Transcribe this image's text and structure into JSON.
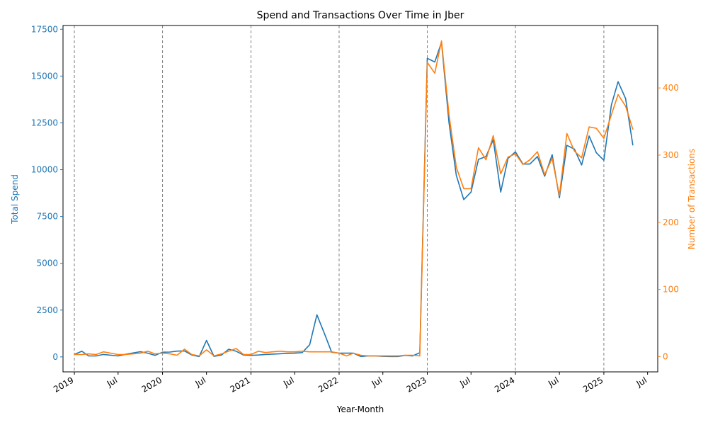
{
  "chart_data": {
    "type": "line",
    "title": "Spend and Transactions Over Time in Jber",
    "xlabel": "Year-Month",
    "ylabel_left": "Total Spend",
    "ylabel_right": "Number of Transactions",
    "x_tick_labels": [
      "2019",
      "Jul",
      "2020",
      "Jul",
      "2021",
      "Jul",
      "2022",
      "Jul",
      "2023",
      "Jul",
      "2024",
      "Jul",
      "2025",
      "Jul"
    ],
    "y_left_ticks": [
      "0",
      "2500",
      "5000",
      "7500",
      "10000",
      "12500",
      "15000",
      "17500"
    ],
    "y_right_ticks": [
      "0",
      "100",
      "200",
      "300",
      "400"
    ],
    "ylim_left": [
      -800,
      17700
    ],
    "ylim_right": [
      -22.8,
      493
    ],
    "xlim": [
      "2018-11-15",
      "2025-08-12"
    ],
    "year_gridlines": [
      "2019-01",
      "2020-01",
      "2021-01",
      "2022-01",
      "2023-01",
      "2024-01",
      "2025-01"
    ],
    "colors": {
      "spend": "#1f77b4",
      "transactions": "#ff7f0e",
      "gridline": "#808080"
    },
    "series": [
      {
        "axis": "left",
        "x": [
          "2019-01",
          "2019-02",
          "2019-03",
          "2019-04",
          "2019-05",
          "2019-07",
          "2019-08",
          "2019-09",
          "2019-10",
          "2019-11",
          "2019-12",
          "2020-01",
          "2020-02",
          "2020-03",
          "2020-04",
          "2020-05",
          "2020-06",
          "2020-07",
          "2020-08",
          "2020-09",
          "2020-10",
          "2020-11",
          "2020-12",
          "2021-01",
          "2021-02",
          "2021-03",
          "2021-04",
          "2021-05",
          "2021-06",
          "2021-07",
          "2021-08",
          "2021-09",
          "2021-10",
          "2021-11",
          "2021-12",
          "2022-01",
          "2022-02",
          "2022-03",
          "2022-04",
          "2022-05",
          "2022-06",
          "2022-07",
          "2022-08",
          "2022-09",
          "2022-10",
          "2022-11",
          "2022-12",
          "2023-01",
          "2023-02",
          "2023-03",
          "2023-04",
          "2023-05",
          "2023-06",
          "2023-07",
          "2023-08",
          "2023-09",
          "2023-10",
          "2023-11",
          "2023-12",
          "2024-01",
          "2024-02",
          "2024-03",
          "2024-04",
          "2024-05",
          "2024-06",
          "2024-07",
          "2024-08",
          "2024-09",
          "2024-10",
          "2024-11",
          "2024-12",
          "2025-01",
          "2025-02",
          "2025-03",
          "2025-04",
          "2025-05"
        ],
        "values": [
          130,
          300,
          50,
          50,
          130,
          50,
          140,
          210,
          280,
          200,
          80,
          250,
          260,
          310,
          320,
          100,
          20,
          880,
          30,
          100,
          410,
          300,
          100,
          80,
          100,
          130,
          150,
          170,
          190,
          200,
          230,
          650,
          2250,
          1250,
          250,
          200,
          200,
          200,
          20,
          50,
          50,
          30,
          20,
          20,
          80,
          50,
          220,
          15950,
          15750,
          16800,
          12500,
          9700,
          8400,
          8800,
          10550,
          10700,
          11600,
          8800,
          10600,
          10950,
          10300,
          10300,
          10700,
          9650,
          10800,
          8500,
          11300,
          11100,
          10250,
          11800,
          10900,
          10500,
          13450,
          14700,
          13800,
          11300
        ]
      },
      {
        "axis": "right",
        "x": [
          "2019-01",
          "2019-02",
          "2019-03",
          "2019-04",
          "2019-05",
          "2019-07",
          "2019-08",
          "2019-09",
          "2019-10",
          "2019-11",
          "2019-12",
          "2020-01",
          "2020-02",
          "2020-03",
          "2020-04",
          "2020-05",
          "2020-06",
          "2020-07",
          "2020-08",
          "2020-09",
          "2020-10",
          "2020-11",
          "2020-12",
          "2021-01",
          "2021-02",
          "2021-03",
          "2021-04",
          "2021-05",
          "2021-06",
          "2021-07",
          "2021-08",
          "2021-09",
          "2021-10",
          "2021-11",
          "2021-12",
          "2022-01",
          "2022-02",
          "2022-03",
          "2022-04",
          "2022-05",
          "2022-06",
          "2022-07",
          "2022-08",
          "2022-09",
          "2022-10",
          "2022-11",
          "2022-12",
          "2023-01",
          "2023-02",
          "2023-03",
          "2023-04",
          "2023-05",
          "2023-06",
          "2023-07",
          "2023-08",
          "2023-09",
          "2023-10",
          "2023-11",
          "2023-12",
          "2024-01",
          "2024-02",
          "2024-03",
          "2024-04",
          "2024-05",
          "2024-06",
          "2024-07",
          "2024-08",
          "2024-09",
          "2024-10",
          "2024-11",
          "2024-12",
          "2025-01",
          "2025-02",
          "2025-03",
          "2025-04",
          "2025-05"
        ],
        "values": [
          3,
          3,
          4,
          3,
          7,
          3,
          3,
          4,
          5,
          8,
          4,
          5,
          4,
          2,
          11,
          3,
          1,
          10,
          1,
          4,
          8,
          12,
          3,
          3,
          8,
          6,
          7,
          8,
          7,
          7,
          8,
          7,
          7,
          7,
          7,
          5,
          1,
          5,
          2,
          1,
          1,
          1,
          1,
          1,
          2,
          2,
          1,
          438,
          422,
          470,
          360,
          282,
          250,
          250,
          311,
          293,
          329,
          272,
          297,
          302,
          286,
          293,
          305,
          271,
          295,
          240,
          332,
          306,
          296,
          342,
          340,
          325,
          360,
          390,
          373,
          338
        ]
      }
    ]
  }
}
